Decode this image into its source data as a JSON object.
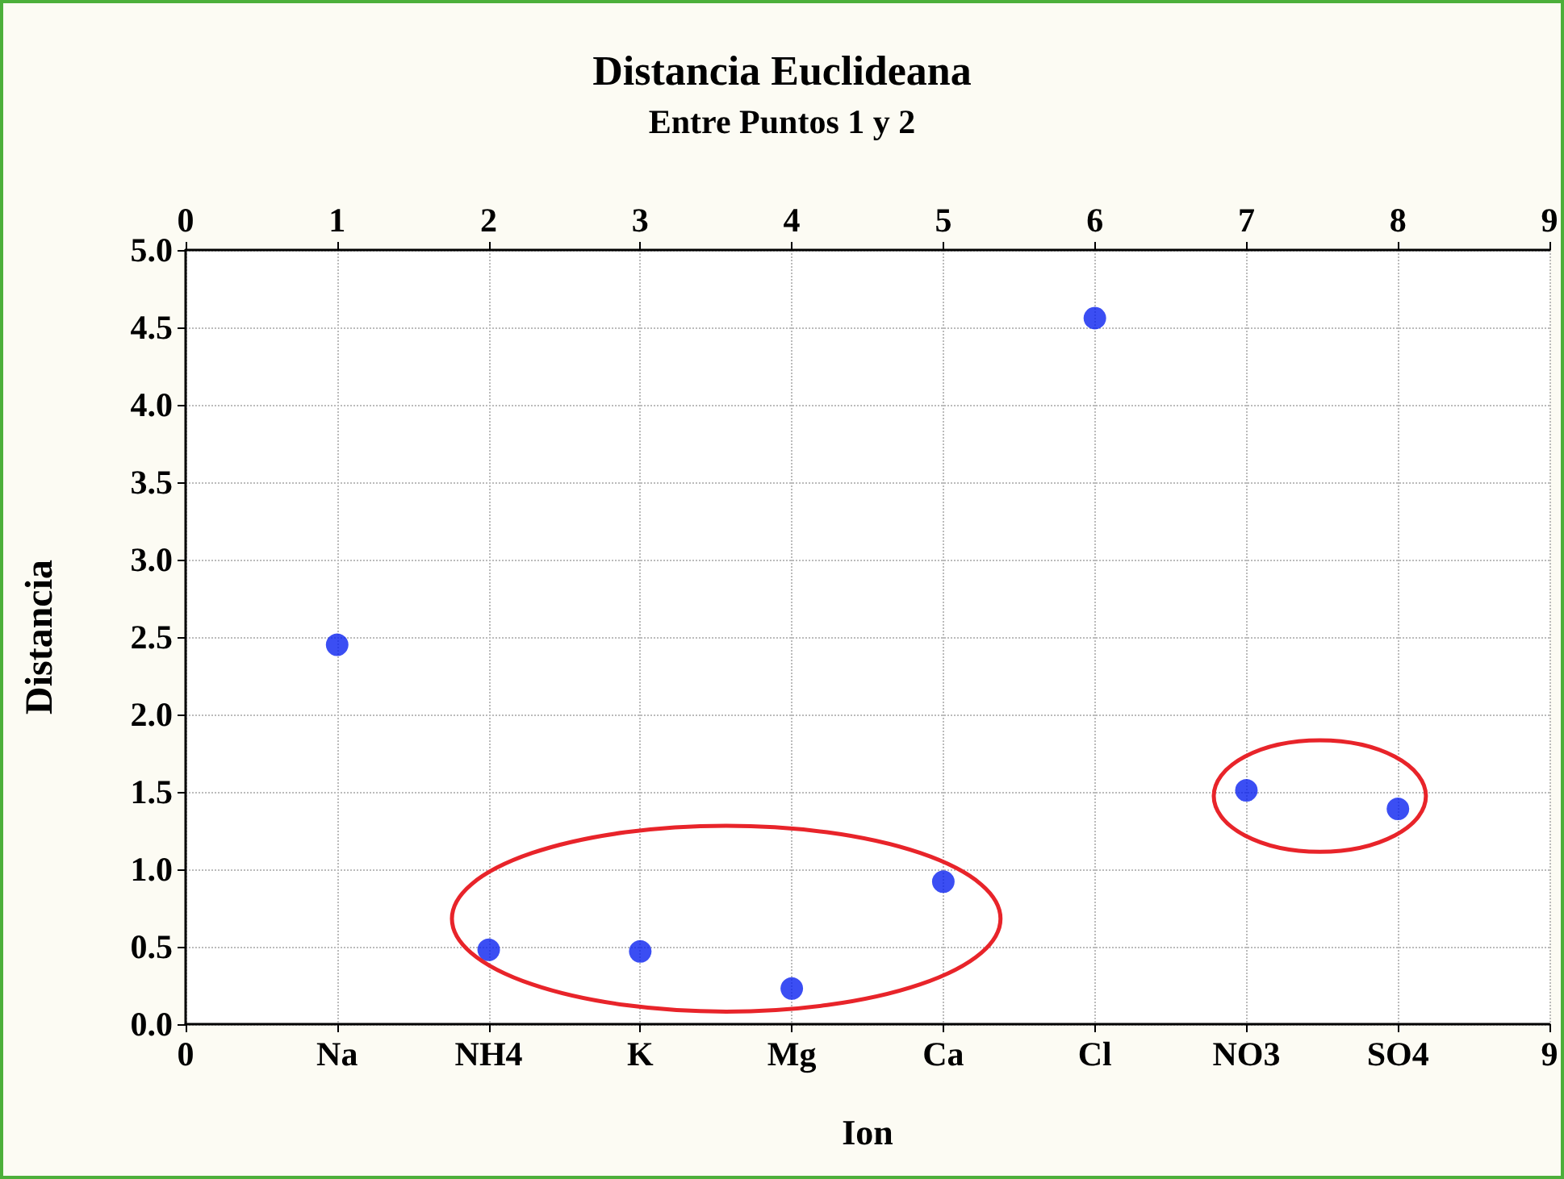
{
  "chart_data": {
    "type": "scatter",
    "title": "Distancia Euclideana",
    "subtitle": "Entre Puntos 1 y 2",
    "xlabel": "Ion",
    "ylabel": "Distancia",
    "series": [
      {
        "color": "#0a22f0",
        "x": [
          1,
          2,
          3,
          4,
          5,
          6,
          7,
          8
        ],
        "values": [
          2.45,
          0.48,
          0.47,
          0.23,
          0.92,
          4.56,
          1.51,
          1.39
        ]
      }
    ],
    "xlim": [
      0,
      9
    ],
    "xticks": [
      0,
      {
        "value": 1,
        "label": "Na"
      },
      {
        "value": 2,
        "label": "NH4"
      },
      {
        "value": 3,
        "label": "K"
      },
      {
        "value": 4,
        "label": "Mg"
      },
      {
        "value": 5,
        "label": "Ca"
      },
      {
        "value": 6,
        "label": "Cl"
      },
      {
        "value": 7,
        "label": "NO3"
      },
      {
        "value": 8,
        "label": "SO4"
      },
      9
    ],
    "x2lim": [
      0,
      9
    ],
    "x2ticks": [
      0,
      1,
      2,
      3,
      4,
      5,
      6,
      7,
      8,
      9
    ],
    "ylim": [
      0,
      5
    ],
    "yticks": [
      {
        "value": 0,
        "label": "0.0"
      },
      {
        "value": 0.5,
        "label": "0.5"
      },
      {
        "value": 1,
        "label": "1.0"
      },
      {
        "value": 1.5,
        "label": "1.5"
      },
      {
        "value": 2,
        "label": "2.0"
      },
      {
        "value": 2.5,
        "label": "2.5"
      },
      {
        "value": 3,
        "label": "3.0"
      },
      {
        "value": 3.5,
        "label": "3.5"
      },
      {
        "value": 4,
        "label": "4.0"
      },
      {
        "value": 4.5,
        "label": "4.5"
      },
      {
        "value": 5,
        "label": "5.0"
      }
    ],
    "grid": true,
    "marker": "circle"
  }
}
